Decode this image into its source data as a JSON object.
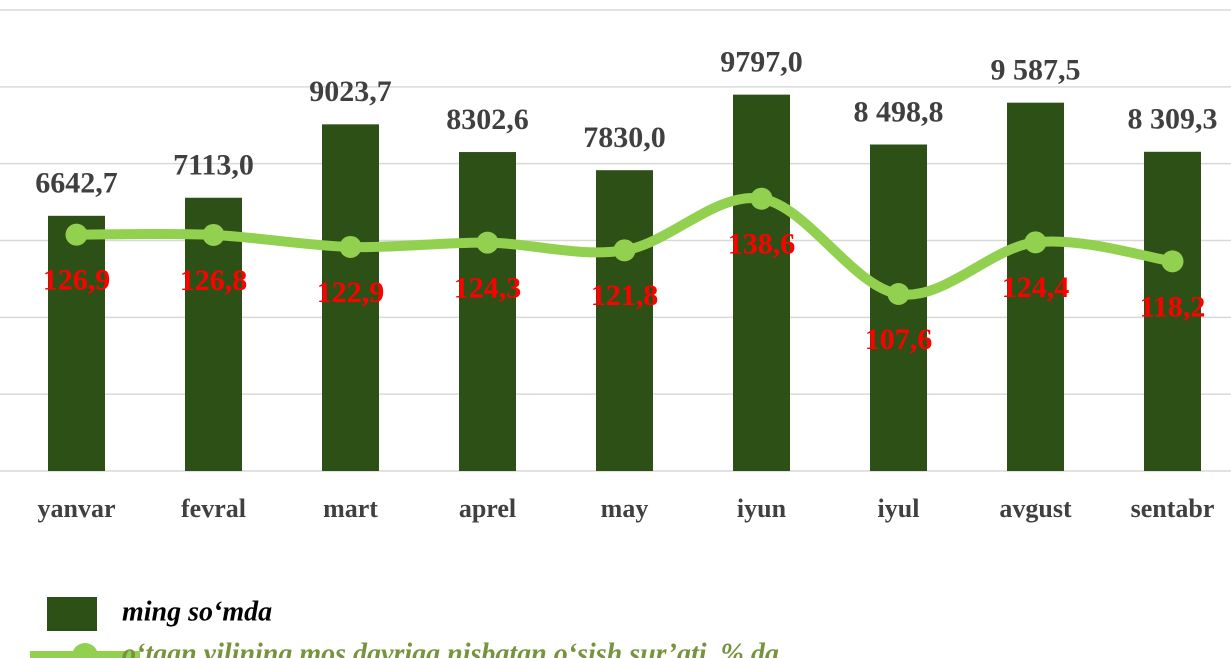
{
  "chart_data": {
    "type": "bar-line",
    "categories": [
      "yanvar",
      "fevral",
      "mart",
      "aprel",
      "may",
      "iyun",
      "iyul",
      "avgust",
      "sentabr"
    ],
    "series": [
      {
        "name": "ming so‘mda",
        "type": "bar",
        "color": "#2d5016",
        "values": [
          6642.7,
          7113.0,
          9023.7,
          8302.6,
          7830.0,
          9797.0,
          8498.8,
          9587.5,
          8309.3
        ],
        "value_labels": [
          "6642,7",
          "7113,0",
          "9023,7",
          "8302,6",
          "7830,0",
          "9797,0",
          "8 498,8",
          "9 587,5",
          "8 309,3"
        ]
      },
      {
        "name": "o‘tgan yilining mos davriga nisbatan o‘sish sur’ati, % da",
        "type": "line",
        "axis": "y2",
        "color": "#92d050",
        "values": [
          126.9,
          126.8,
          122.9,
          124.3,
          121.8,
          138.6,
          107.6,
          124.4,
          118.2
        ],
        "value_labels": [
          "126,9",
          "126,8",
          "122,9",
          "124,3",
          "121,8",
          "138,6",
          "107,6",
          "124,4",
          "118,2"
        ]
      }
    ],
    "ylim": [
      0,
      12000
    ],
    "yticks": [
      0,
      2000,
      4000,
      6000,
      8000,
      10000,
      12000
    ],
    "y2lim": [
      50,
      200
    ],
    "grid": true
  }
}
